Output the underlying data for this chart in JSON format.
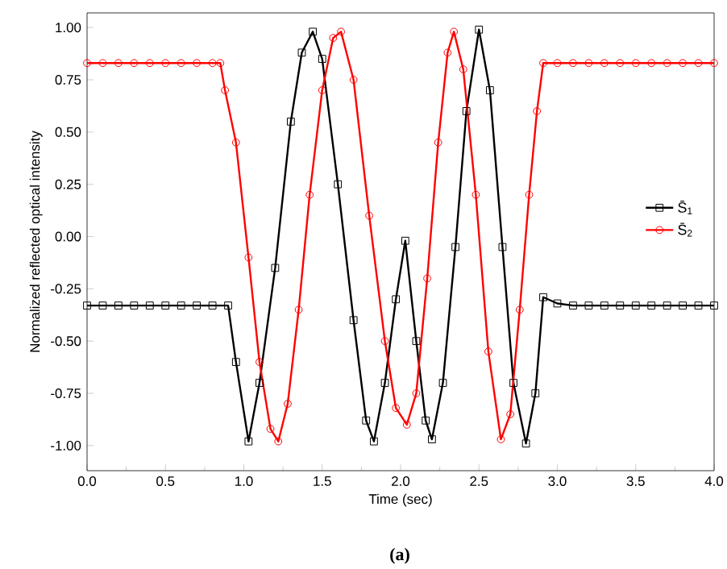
{
  "chart_data": {
    "type": "line",
    "xlabel": "Time (sec)",
    "ylabel": "Normalized reflected optical intensity",
    "annotations": [
      "(a)"
    ],
    "xlim": [
      0,
      4
    ],
    "ylim": [
      -1.12,
      1.07
    ],
    "xticks": [
      {
        "value": 0,
        "label": "0.0"
      },
      {
        "value": 0.5,
        "label": "0.5"
      },
      {
        "value": 1,
        "label": "1.0"
      },
      {
        "value": 1.5,
        "label": "1.5"
      },
      {
        "value": 2,
        "label": "2.0"
      },
      {
        "value": 2.5,
        "label": "2.5"
      },
      {
        "value": 3,
        "label": "3.0"
      },
      {
        "value": 3.5,
        "label": "3.5"
      },
      {
        "value": 4,
        "label": "4.0"
      }
    ],
    "yticks": [
      {
        "value": -1,
        "label": "-1.00"
      },
      {
        "value": -0.75,
        "label": "-0.75"
      },
      {
        "value": -0.5,
        "label": "-0.50"
      },
      {
        "value": -0.25,
        "label": "-0.25"
      },
      {
        "value": 0,
        "label": "0.00"
      },
      {
        "value": 0.25,
        "label": "0.25"
      },
      {
        "value": 0.5,
        "label": "0.50"
      },
      {
        "value": 0.75,
        "label": "0.75"
      },
      {
        "value": 1,
        "label": "1.00"
      }
    ],
    "grid": false,
    "legend": "right",
    "series": [
      {
        "name": "S̄$_{1}$",
        "color": "#000000",
        "marker": "square",
        "x": [
          0,
          0.1,
          0.2,
          0.3,
          0.4,
          0.5,
          0.6,
          0.7,
          0.8,
          0.9,
          0.95,
          1.03,
          1.1,
          1.2,
          1.3,
          1.37,
          1.44,
          1.5,
          1.6,
          1.7,
          1.78,
          1.83,
          1.9,
          1.97,
          2.03,
          2.1,
          2.16,
          2.2,
          2.27,
          2.35,
          2.42,
          2.5,
          2.57,
          2.65,
          2.72,
          2.8,
          2.86,
          2.91,
          3.0,
          3.1,
          3.2,
          3.3,
          3.4,
          3.5,
          3.6,
          3.7,
          3.8,
          3.9,
          4.0
        ],
        "values": [
          -0.33,
          -0.33,
          -0.33,
          -0.33,
          -0.33,
          -0.33,
          -0.33,
          -0.33,
          -0.33,
          -0.33,
          -0.6,
          -0.98,
          -0.7,
          -0.15,
          0.55,
          0.88,
          0.98,
          0.85,
          0.25,
          -0.4,
          -0.88,
          -0.98,
          -0.7,
          -0.3,
          -0.02,
          -0.5,
          -0.88,
          -0.97,
          -0.7,
          -0.05,
          0.6,
          0.99,
          0.7,
          -0.05,
          -0.7,
          -0.99,
          -0.75,
          -0.29,
          -0.32,
          -0.33,
          -0.33,
          -0.33,
          -0.33,
          -0.33,
          -0.33,
          -0.33,
          -0.33,
          -0.33,
          -0.33
        ]
      },
      {
        "name": "S̄$_{2}$",
        "color": "#ff0000",
        "marker": "circle",
        "x": [
          0,
          0.1,
          0.2,
          0.3,
          0.4,
          0.5,
          0.6,
          0.7,
          0.8,
          0.85,
          0.88,
          0.95,
          1.03,
          1.1,
          1.17,
          1.22,
          1.28,
          1.35,
          1.42,
          1.5,
          1.57,
          1.62,
          1.7,
          1.8,
          1.9,
          1.97,
          2.04,
          2.1,
          2.17,
          2.24,
          2.3,
          2.34,
          2.4,
          2.48,
          2.56,
          2.64,
          2.7,
          2.76,
          2.82,
          2.87,
          2.91,
          3.0,
          3.1,
          3.2,
          3.3,
          3.4,
          3.5,
          3.6,
          3.7,
          3.8,
          3.9,
          4.0
        ],
        "values": [
          0.83,
          0.83,
          0.83,
          0.83,
          0.83,
          0.83,
          0.83,
          0.83,
          0.83,
          0.83,
          0.7,
          0.45,
          -0.1,
          -0.6,
          -0.92,
          -0.98,
          -0.8,
          -0.35,
          0.2,
          0.7,
          0.95,
          0.98,
          0.75,
          0.1,
          -0.5,
          -0.82,
          -0.9,
          -0.75,
          -0.2,
          0.45,
          0.88,
          0.98,
          0.8,
          0.2,
          -0.55,
          -0.97,
          -0.85,
          -0.35,
          0.2,
          0.6,
          0.83,
          0.83,
          0.83,
          0.83,
          0.83,
          0.83,
          0.83,
          0.83,
          0.83,
          0.83,
          0.83,
          0.83
        ]
      }
    ]
  }
}
